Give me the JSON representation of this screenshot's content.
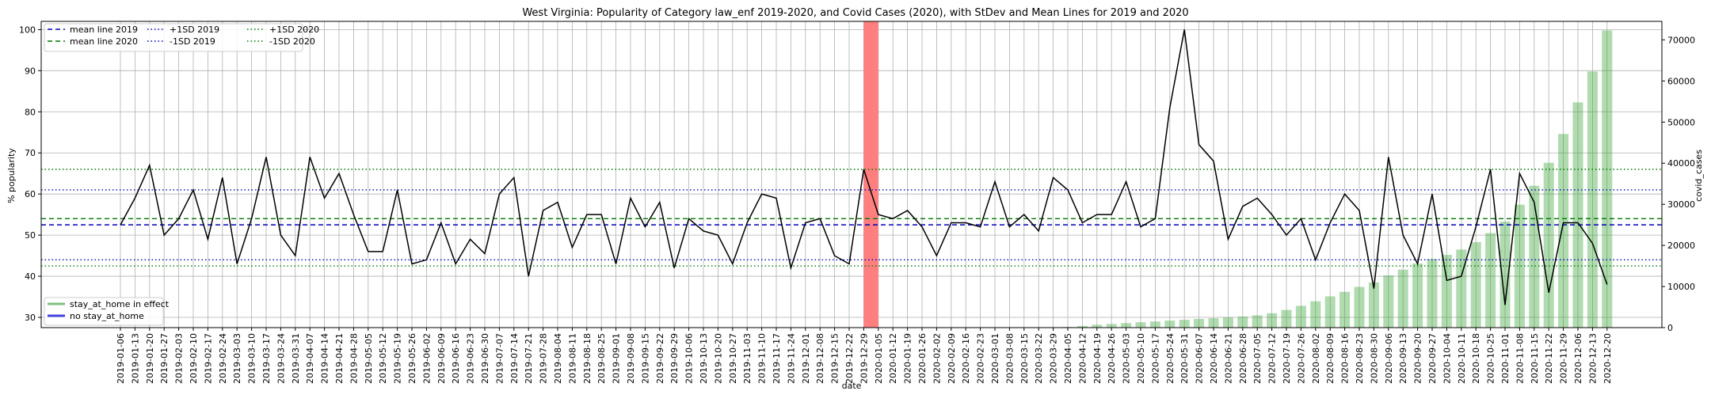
{
  "chart_data": {
    "type": "line",
    "title": "West Virginia: Popularity of Category law_enf 2019-2020, and Covid Cases (2020), with StDev and Mean Lines for 2019 and 2020",
    "xlabel": "date",
    "ylabel": "% popularity",
    "y2label": "covid_cases",
    "ylim": [
      27.5,
      102
    ],
    "y2lim": [
      0,
      74500
    ],
    "yticks": [
      30,
      40,
      50,
      60,
      70,
      80,
      90,
      100
    ],
    "y2ticks": [
      0,
      10000,
      20000,
      30000,
      40000,
      50000,
      60000,
      70000
    ],
    "grid": true,
    "x": [
      "2019-01-06",
      "2019-01-13",
      "2019-01-20",
      "2019-01-27",
      "2019-02-03",
      "2019-02-10",
      "2019-02-17",
      "2019-02-24",
      "2019-03-03",
      "2019-03-10",
      "2019-03-17",
      "2019-03-24",
      "2019-03-31",
      "2019-04-07",
      "2019-04-14",
      "2019-04-21",
      "2019-04-28",
      "2019-05-05",
      "2019-05-12",
      "2019-05-19",
      "2019-05-26",
      "2019-06-02",
      "2019-06-09",
      "2019-06-16",
      "2019-06-23",
      "2019-06-30",
      "2019-07-07",
      "2019-07-14",
      "2019-07-21",
      "2019-07-28",
      "2019-08-04",
      "2019-08-11",
      "2019-08-18",
      "2019-08-25",
      "2019-09-01",
      "2019-09-08",
      "2019-09-15",
      "2019-09-22",
      "2019-09-29",
      "2019-10-06",
      "2019-10-13",
      "2019-10-20",
      "2019-10-27",
      "2019-11-03",
      "2019-11-10",
      "2019-11-17",
      "2019-11-24",
      "2019-12-01",
      "2019-12-08",
      "2019-12-15",
      "2019-12-22",
      "2019-12-29",
      "2020-01-05",
      "2020-01-12",
      "2020-01-19",
      "2020-01-26",
      "2020-02-02",
      "2020-02-09",
      "2020-02-16",
      "2020-02-23",
      "2020-03-01",
      "2020-03-08",
      "2020-03-15",
      "2020-03-22",
      "2020-03-29",
      "2020-04-05",
      "2020-04-12",
      "2020-04-19",
      "2020-04-26",
      "2020-05-03",
      "2020-05-10",
      "2020-05-17",
      "2020-05-24",
      "2020-05-31",
      "2020-06-07",
      "2020-06-14",
      "2020-06-21",
      "2020-06-28",
      "2020-07-05",
      "2020-07-12",
      "2020-07-19",
      "2020-07-26",
      "2020-08-02",
      "2020-08-09",
      "2020-08-16",
      "2020-08-23",
      "2020-08-30",
      "2020-09-06",
      "2020-09-13",
      "2020-09-20",
      "2020-09-27",
      "2020-10-04",
      "2020-10-11",
      "2020-10-18",
      "2020-10-25",
      "2020-11-01",
      "2020-11-08",
      "2020-11-15",
      "2020-11-22",
      "2020-11-29",
      "2020-12-06",
      "2020-12-13",
      "2020-12-20"
    ],
    "series": [
      {
        "name": "popularity",
        "color": "#000000",
        "values": [
          52.5,
          59,
          67,
          50,
          54,
          61,
          49,
          64,
          43,
          54,
          69,
          50,
          45,
          69,
          59,
          65,
          55,
          46,
          46,
          61,
          43,
          44,
          53,
          43,
          49,
          45.5,
          60,
          64,
          40,
          56,
          58,
          47,
          55,
          55,
          43,
          59,
          52,
          58,
          42,
          54,
          51,
          50,
          43,
          53,
          60,
          59,
          42,
          53,
          54,
          45,
          43,
          66,
          55,
          54,
          56,
          52,
          45,
          53,
          53,
          52,
          63,
          52,
          55,
          51,
          64,
          61,
          53,
          55,
          55,
          63,
          52,
          54,
          81,
          100,
          72,
          68,
          49,
          57,
          59,
          55,
          50,
          54,
          44,
          53,
          60,
          56,
          37,
          69,
          50,
          43,
          60,
          39,
          40,
          52,
          66,
          33,
          65,
          58,
          36,
          53,
          53,
          48,
          38
        ]
      },
      {
        "name": "covid_cases",
        "color": "#2ca02c",
        "opacity": 0.38,
        "values": [
          null,
          null,
          null,
          null,
          null,
          null,
          null,
          null,
          null,
          null,
          null,
          null,
          null,
          null,
          null,
          null,
          null,
          null,
          null,
          null,
          null,
          null,
          null,
          null,
          null,
          null,
          null,
          null,
          null,
          null,
          null,
          null,
          null,
          null,
          null,
          null,
          null,
          null,
          null,
          null,
          null,
          null,
          null,
          null,
          null,
          null,
          null,
          null,
          null,
          null,
          null,
          null,
          null,
          null,
          null,
          null,
          null,
          null,
          null,
          null,
          null,
          null,
          null,
          null,
          0,
          150,
          400,
          700,
          900,
          1100,
          1300,
          1500,
          1700,
          1900,
          2100,
          2300,
          2500,
          2700,
          3000,
          3500,
          4300,
          5300,
          6400,
          7600,
          8700,
          9900,
          11000,
          12700,
          14100,
          15600,
          16700,
          17700,
          19000,
          20800,
          23000,
          25800,
          29900,
          34500,
          40100,
          47100,
          54800,
          62300,
          72300
        ]
      },
      {
        "name": "mean line 2019",
        "color": "#0000bb",
        "dash": "6,4",
        "value": 52.5
      },
      {
        "name": "mean line 2020",
        "color": "#007700",
        "dash": "6,4",
        "value": 54
      },
      {
        "name": "+1SD 2019",
        "color": "#0000bb",
        "dash": "1.5,3",
        "value": 61
      },
      {
        "name": "-1SD 2019",
        "color": "#0000bb",
        "dash": "1.5,3",
        "value": 44
      },
      {
        "name": "+1SD 2020",
        "color": "#007700",
        "dash": "1.5,3",
        "value": 66
      },
      {
        "name": "-1SD 2020",
        "color": "#007700",
        "dash": "1.5,3",
        "value": 42.5
      }
    ],
    "highlight": {
      "from": "2019-12-29",
      "to": "2020-01-05",
      "color": "#ff7f7f"
    },
    "legend_top": {
      "placement": "upper-left",
      "entries": [
        {
          "label": "mean line 2019",
          "color": "#0000bb",
          "dash": "6,4"
        },
        {
          "label": "mean line 2020",
          "color": "#007700",
          "dash": "6,4"
        },
        {
          "label": "+1SD 2019",
          "color": "#0000bb",
          "dash": "1.5,3"
        },
        {
          "label": "-1SD 2019",
          "color": "#0000bb",
          "dash": "1.5,3"
        },
        {
          "label": "+1SD 2020",
          "color": "#007700",
          "dash": "1.5,3"
        },
        {
          "label": "-1SD 2020",
          "color": "#007700",
          "dash": "1.5,3"
        }
      ]
    },
    "legend_bottom": {
      "placement": "lower-left",
      "entries": [
        {
          "label": "stay_at_home in effect",
          "color": "#7fbf7f"
        },
        {
          "label": "no stay_at_home",
          "color": "#4444dd"
        }
      ]
    }
  }
}
